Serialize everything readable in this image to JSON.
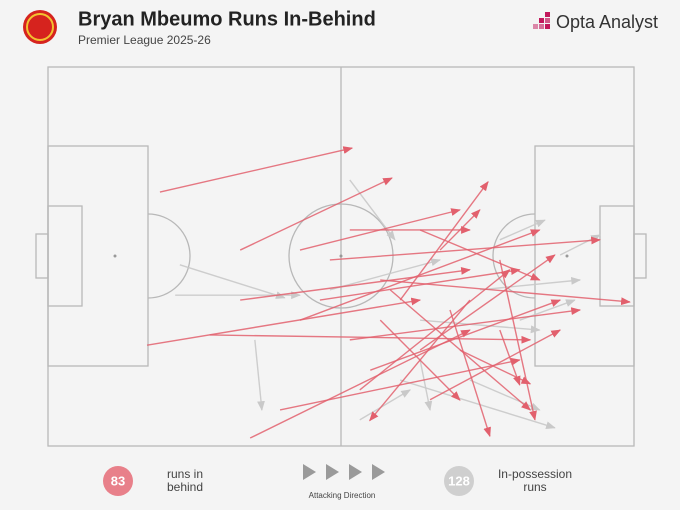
{
  "chart_data": {
    "type": "pitch-arrows",
    "title": "Bryan Mbeumo Runs In-Behind",
    "subtitle": "Premier League 2025-26",
    "brand": "Opta Analyst",
    "direction_label": "Attacking Direction",
    "xlim": [
      0,
      100
    ],
    "ylim": [
      0,
      100
    ],
    "series": [
      {
        "name": "In-possession runs",
        "count": 128,
        "color": "#c9c9c9",
        "runs": [
          [
            22.5,
            52.2,
            40.4,
            60.9
          ],
          [
            21.7,
            60.2,
            43,
            60.2
          ],
          [
            51.5,
            29.8,
            59.2,
            45.6
          ],
          [
            35.3,
            72,
            36.5,
            90.5
          ],
          [
            60.1,
            82.6,
            86.5,
            95.2
          ],
          [
            73.7,
            58.8,
            90.8,
            56.2
          ],
          [
            87.4,
            49.6,
            94.2,
            44.3
          ],
          [
            77.1,
            45.6,
            84.8,
            40.4
          ],
          [
            63.5,
            66.8,
            83.9,
            69.4
          ],
          [
            53.2,
            93.1,
            61.8,
            85.2
          ],
          [
            63.5,
            77.3,
            65.2,
            90.5
          ],
          [
            48.1,
            58.8,
            66.9,
            50.9
          ],
          [
            72,
            82.6,
            83.9,
            90.5
          ],
          [
            80.5,
            66.8,
            89.9,
            61.5
          ]
        ]
      },
      {
        "name": "runs in behind",
        "count": 83,
        "color": "#e2606d",
        "runs": [
          [
            19.1,
            33,
            51.9,
            21.4
          ],
          [
            32.8,
            48.3,
            58.7,
            29.3
          ],
          [
            16.9,
            73.4,
            63.5,
            61.5
          ],
          [
            34.5,
            97.9,
            72,
            69.4
          ],
          [
            27.6,
            70.7,
            82.3,
            72
          ],
          [
            51.5,
            43,
            72,
            43
          ],
          [
            56.7,
            56.2,
            99.3,
            62
          ],
          [
            60.1,
            61.5,
            75.1,
            30.3
          ],
          [
            63.5,
            74.7,
            86.5,
            49.6
          ],
          [
            43,
            66.8,
            83.9,
            43
          ],
          [
            65.2,
            87.8,
            87.4,
            69.4
          ],
          [
            68.6,
            64.1,
            75.4,
            97.4
          ],
          [
            53.2,
            85.2,
            78.8,
            53.5
          ],
          [
            77.1,
            50.9,
            83.1,
            93.1
          ],
          [
            48.1,
            50.9,
            94.2,
            45.6
          ],
          [
            72,
            61.5,
            54.9,
            93.3
          ],
          [
            39.6,
            90.5,
            80.5,
            77.3
          ],
          [
            51.5,
            72,
            90.8,
            64.1
          ],
          [
            58.4,
            58.8,
            82.3,
            90.5
          ],
          [
            66.9,
            48.3,
            73.7,
            37.7
          ],
          [
            46.4,
            61.5,
            80.5,
            53.5
          ],
          [
            77.1,
            69.4,
            80.5,
            83.9
          ],
          [
            55,
            80,
            87.4,
            61.5
          ],
          [
            32.8,
            61.5,
            72,
            53.5
          ],
          [
            63.5,
            43,
            83.9,
            56.2
          ],
          [
            70.3,
            74.7,
            82.3,
            83.6
          ],
          [
            56.7,
            66.8,
            70.3,
            87.9
          ],
          [
            43,
            48.3,
            70.3,
            37.7
          ]
        ]
      }
    ]
  }
}
